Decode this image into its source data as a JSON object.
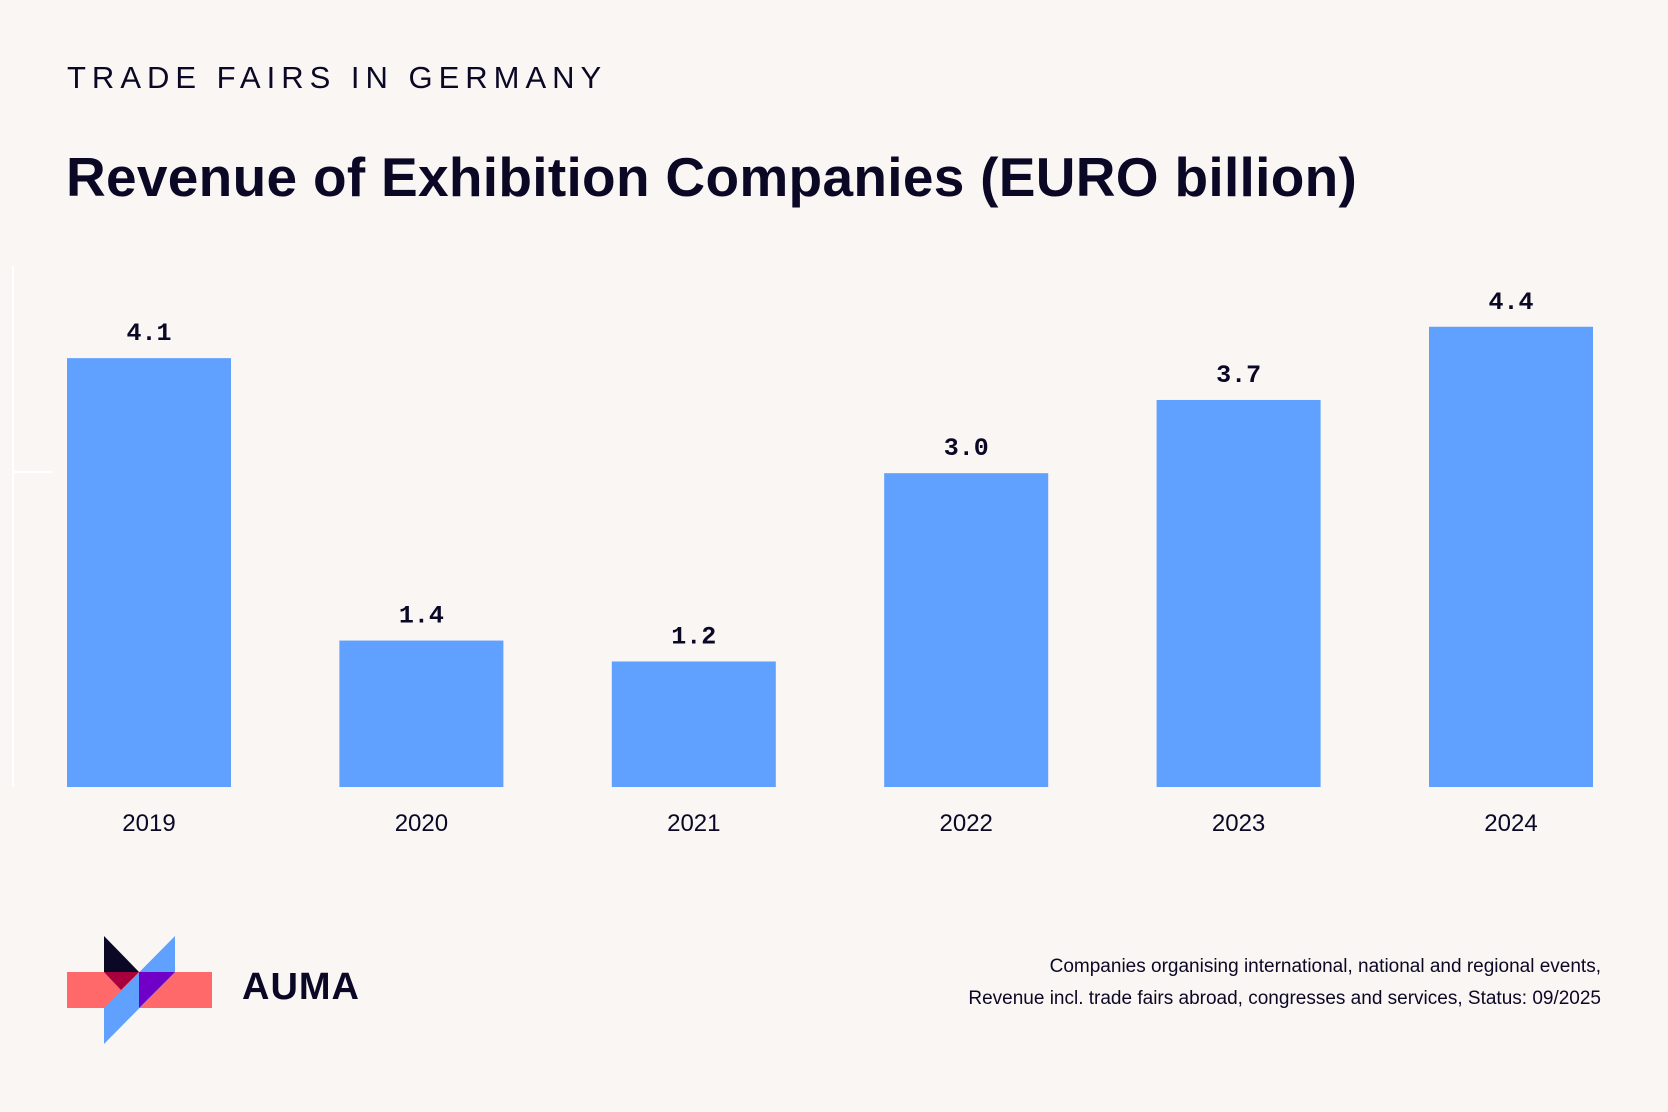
{
  "header": {
    "kicker": "TRADE FAIRS IN GERMANY",
    "title": "Revenue of Exhibition Companies (EURO billion)"
  },
  "chart_data": {
    "type": "bar",
    "title": "Revenue of Exhibition Companies (EURO billion)",
    "categories": [
      "2019",
      "2020",
      "2021",
      "2022",
      "2023",
      "2024"
    ],
    "values": [
      4.1,
      1.4,
      1.2,
      3.0,
      3.7,
      4.4
    ],
    "value_labels": [
      "4.1",
      "1.4",
      "1.2",
      "3.0",
      "3.7",
      "4.4"
    ],
    "xlabel": "",
    "ylabel": "",
    "ylim": [
      0,
      5
    ],
    "grid": false,
    "bar_color": "#60a0ff"
  },
  "footer": {
    "note_line1": "Companies organising international, national and regional events,",
    "note_line2": "Revenue incl. trade fairs abroad, congresses and services, Status: 09/2025"
  },
  "logo": {
    "text": "AUMA",
    "colors": {
      "red": "#ff6969",
      "blue": "#60a0ff",
      "black": "#0b0826",
      "dark_red": "#a8003c",
      "purple": "#7000c8"
    }
  }
}
